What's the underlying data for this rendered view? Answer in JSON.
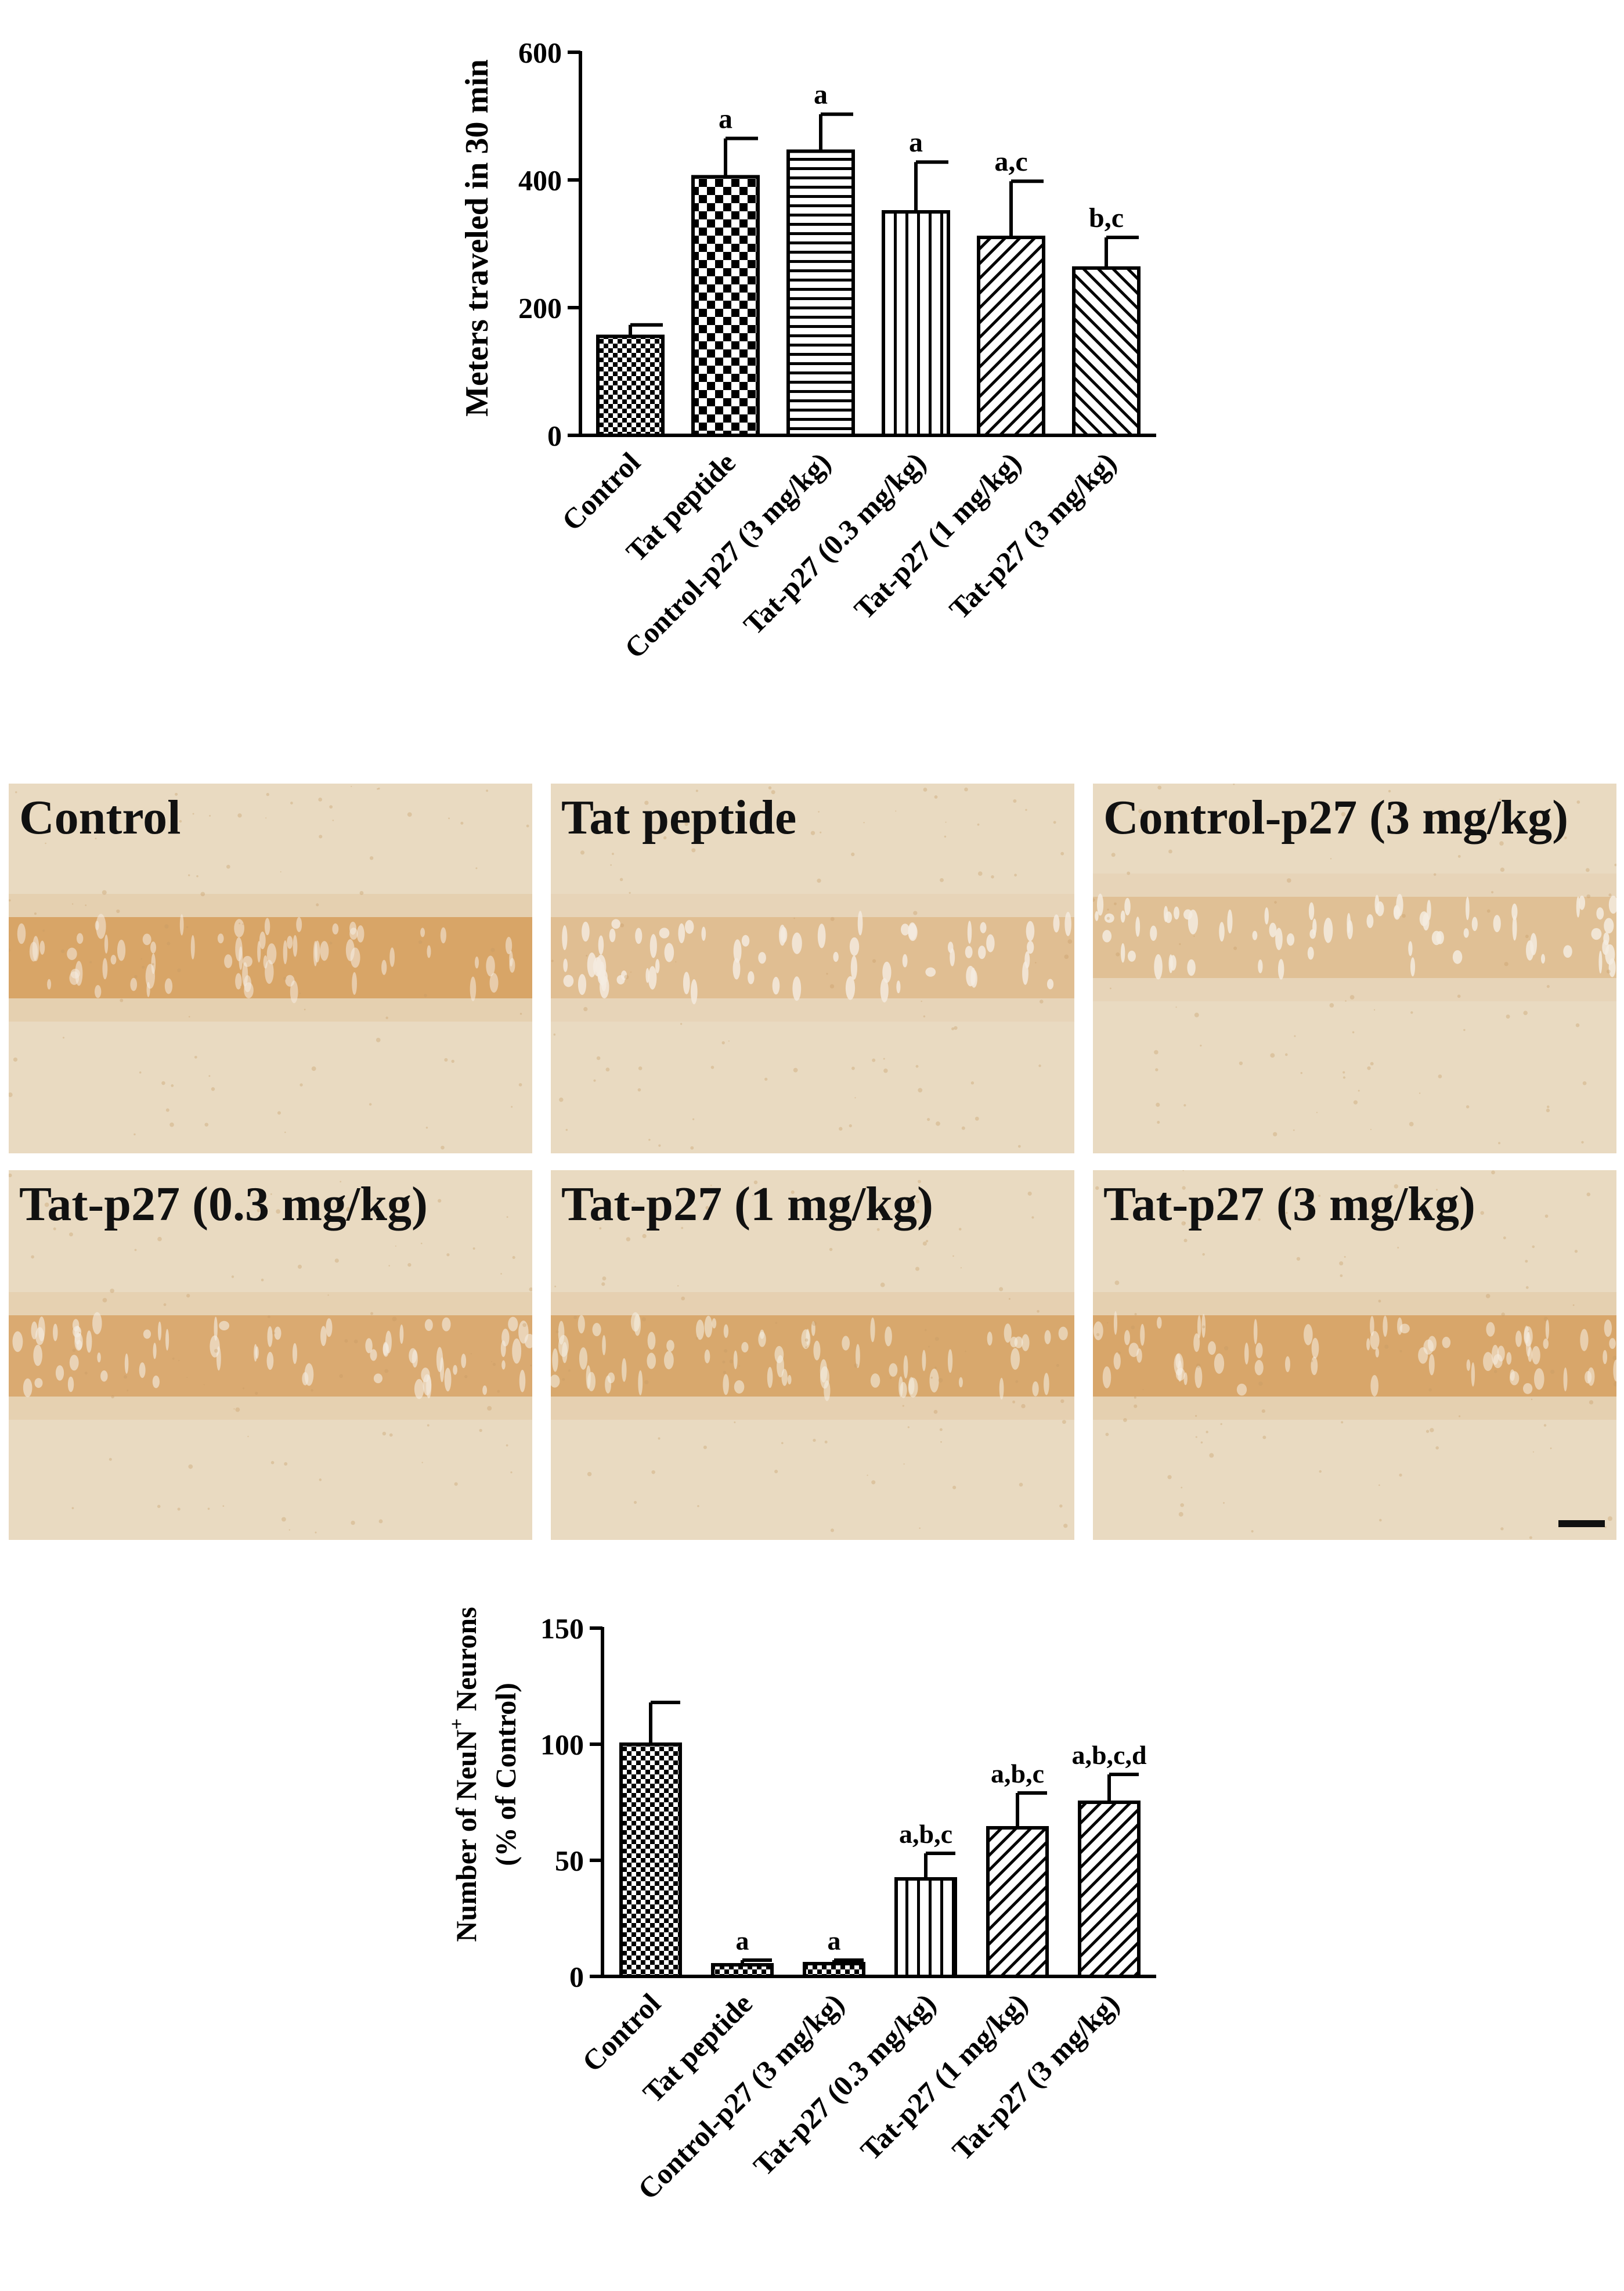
{
  "chart_data": [
    {
      "type": "bar",
      "ylabel": "Meters traveled in 30 min",
      "ylim": [
        0,
        600
      ],
      "yticks": [
        0,
        200,
        400,
        600
      ],
      "categories": [
        "Control",
        "Tat peptide",
        "Control-p27 (3 mg/kg)",
        "Tat-p27 (0.3 mg/kg)",
        "Tat-p27 (1 mg/kg)",
        "Tat-p27 (3 mg/kg)"
      ],
      "values": [
        155,
        405,
        445,
        350,
        310,
        262
      ],
      "errors": [
        18,
        60,
        58,
        78,
        88,
        48
      ],
      "annotations": [
        "",
        "a",
        "a",
        "a",
        "a,c",
        "b,c"
      ],
      "patterns": [
        "checker-fine",
        "checker",
        "horizontal",
        "vertical",
        "diag-right",
        "diag-left"
      ]
    },
    {
      "type": "bar",
      "ylabel_lines": [
        "Number of NeuN",
        "+",
        " Neurons",
        "(% of Control)"
      ],
      "ylim": [
        0,
        150
      ],
      "yticks": [
        0,
        50,
        100,
        150
      ],
      "categories": [
        "Control",
        "Tat peptide",
        "Control-p27 (3 mg/kg)",
        "Tat-p27 (0.3 mg/kg)",
        "Tat-p27 (1 mg/kg)",
        "Tat-p27 (3 mg/kg)"
      ],
      "values": [
        100,
        5,
        5.5,
        42,
        64,
        75
      ],
      "errors": [
        18,
        2,
        1.5,
        11,
        15,
        12
      ],
      "annotations": [
        "",
        "a",
        "a",
        "a,b,c",
        "a,b,c",
        "a,b,c,d"
      ],
      "patterns": [
        "checker-fine",
        "checker-fine",
        "checker-fine",
        "vertical",
        "diag-right",
        "diag-right"
      ]
    }
  ],
  "panels": [
    {
      "label": "Control",
      "band_intensity": 0.85
    },
    {
      "label": "Tat peptide",
      "band_intensity": 0.2
    },
    {
      "label": "Control-p27 (3 mg/kg)",
      "band_intensity": 0.15
    },
    {
      "label": "Tat-p27 (0.3 mg/kg)",
      "band_intensity": 0.7
    },
    {
      "label": "Tat-p27 (1 mg/kg)",
      "band_intensity": 0.75
    },
    {
      "label": "Tat-p27 (3 mg/kg)",
      "band_intensity": 0.8
    }
  ],
  "colors": {
    "tissue_bg": "#e9dac1",
    "band": "#d49a55",
    "bar_stroke": "#000000"
  }
}
